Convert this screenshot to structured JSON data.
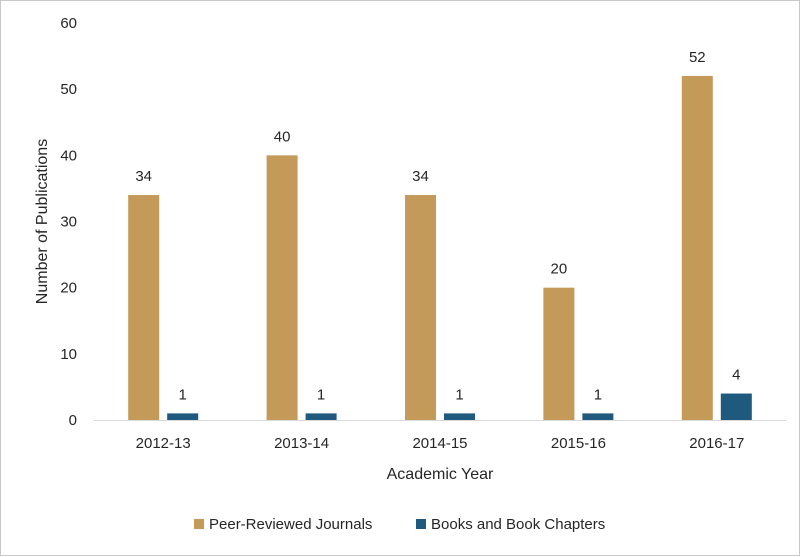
{
  "chart_data": {
    "type": "bar",
    "title": "",
    "xlabel": "Academic Year",
    "ylabel": "Number of Publications",
    "categories": [
      "2012-13",
      "2013-14",
      "2014-15",
      "2015-16",
      "2016-17"
    ],
    "series": [
      {
        "name": "Peer-Reviewed Journals",
        "values": [
          34,
          40,
          34,
          20,
          52
        ],
        "color": "#c49a58"
      },
      {
        "name": "Books and Book Chapters",
        "values": [
          1,
          1,
          1,
          1,
          4
        ],
        "color": "#1f5a7e"
      }
    ],
    "ylim": [
      0,
      60
    ],
    "yticks": [
      0,
      10,
      20,
      30,
      40,
      50,
      60
    ],
    "grid": false,
    "legend_position": "bottom",
    "data_labels": true
  }
}
